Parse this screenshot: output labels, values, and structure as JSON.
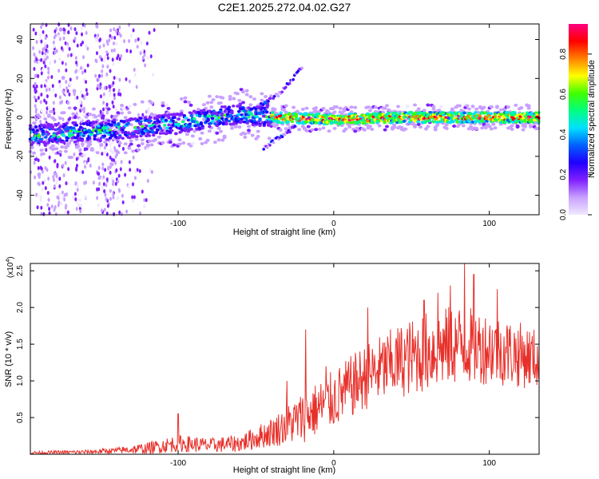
{
  "title": "C2E1.2025.272.04.02.G27",
  "chart_data": [
    {
      "type": "heatmap",
      "xlabel": "Height of straight line (km)",
      "ylabel": "Frequency (Hz)",
      "xlim": [
        -195,
        132
      ],
      "ylim": [
        -50,
        48
      ],
      "xticks": [
        -100,
        0,
        100
      ],
      "xtick_labels": [
        "-100",
        "0",
        "100"
      ],
      "yticks": [
        -40,
        -20,
        0,
        20,
        40
      ],
      "ytick_labels": [
        "-40",
        "-20",
        "0",
        "20",
        "40"
      ],
      "colorbar": {
        "label": "Normalized spectral amplitude",
        "range": [
          0.0,
          0.95
        ],
        "ticks": [
          0.0,
          0.2,
          0.4,
          0.6,
          0.8
        ],
        "tick_labels": [
          "0.0",
          "0.2",
          "0.4",
          "0.6",
          "0.8"
        ],
        "colors": [
          "#f0e8ff",
          "#c8a0ff",
          "#8020ff",
          "#2000ff",
          "#0060ff",
          "#00e0ff",
          "#00ff80",
          "#40ff00",
          "#ffff00",
          "#ff8000",
          "#ff0000",
          "#ff0080"
        ]
      },
      "features": {
        "main_band_center_hz": [
          {
            "x": -195,
            "y": -9
          },
          {
            "x": -150,
            "y": -7
          },
          {
            "x": -100,
            "y": -3
          },
          {
            "x": -60,
            "y": 2
          },
          {
            "x": -40,
            "y": 0
          },
          {
            "x": 0,
            "y": -1
          },
          {
            "x": 50,
            "y": 0
          },
          {
            "x": 132,
            "y": 0
          }
        ],
        "upper_branch_hz": [
          {
            "x": -50,
            "y": 5
          },
          {
            "x": -35,
            "y": 12
          },
          {
            "x": -20,
            "y": 26
          }
        ],
        "lower_branch_hz": [
          {
            "x": -45,
            "y": -16
          },
          {
            "x": -35,
            "y": -10
          },
          {
            "x": -25,
            "y": -5
          }
        ]
      }
    },
    {
      "type": "line",
      "xlabel": "Height of straight line (km)",
      "ylabel": "SNR (10 * v/v)",
      "y_multiplier_label": "(x10",
      "y_multiplier_exp": "4",
      "y_multiplier_close": ")",
      "xlim": [
        -195,
        132
      ],
      "ylim": [
        0,
        2.6
      ],
      "xticks": [
        -100,
        0,
        100
      ],
      "xtick_labels": [
        "-100",
        "0",
        "100"
      ],
      "yticks": [
        0.5,
        1.0,
        1.5,
        2.0,
        2.5
      ],
      "ytick_labels": [
        "0.5",
        "1.0",
        "1.5",
        "2.0",
        "2.5"
      ],
      "line_color": "#e8302a",
      "envelope": [
        {
          "x": -195,
          "mean": 0.02,
          "spread": 0.02
        },
        {
          "x": -160,
          "mean": 0.03,
          "spread": 0.03
        },
        {
          "x": -140,
          "mean": 0.05,
          "spread": 0.04
        },
        {
          "x": -120,
          "mean": 0.08,
          "spread": 0.08
        },
        {
          "x": -100,
          "mean": 0.15,
          "spread": 0.12
        },
        {
          "x": -80,
          "mean": 0.12,
          "spread": 0.1
        },
        {
          "x": -60,
          "mean": 0.15,
          "spread": 0.12
        },
        {
          "x": -40,
          "mean": 0.3,
          "spread": 0.2
        },
        {
          "x": -20,
          "mean": 0.5,
          "spread": 0.35
        },
        {
          "x": 0,
          "mean": 0.75,
          "spread": 0.4
        },
        {
          "x": 20,
          "mean": 1.05,
          "spread": 0.45
        },
        {
          "x": 40,
          "mean": 1.25,
          "spread": 0.5
        },
        {
          "x": 60,
          "mean": 1.4,
          "spread": 0.55
        },
        {
          "x": 80,
          "mean": 1.5,
          "spread": 0.55
        },
        {
          "x": 100,
          "mean": 1.45,
          "spread": 0.5
        },
        {
          "x": 120,
          "mean": 1.35,
          "spread": 0.45
        },
        {
          "x": 132,
          "mean": 1.3,
          "spread": 0.4
        }
      ],
      "peaks": [
        {
          "x": 67,
          "y": 2.2
        },
        {
          "x": 75,
          "y": 2.3
        },
        {
          "x": 84,
          "y": 2.6
        },
        {
          "x": 90,
          "y": 2.45
        },
        {
          "x": 58,
          "y": 2.1
        },
        {
          "x": 105,
          "y": 2.25
        },
        {
          "x": 22,
          "y": 2.0
        },
        {
          "x": -18,
          "y": 1.7
        },
        {
          "x": -30,
          "y": 1.0
        },
        {
          "x": -5,
          "y": 1.2
        },
        {
          "x": -100,
          "y": 0.55
        }
      ]
    }
  ]
}
